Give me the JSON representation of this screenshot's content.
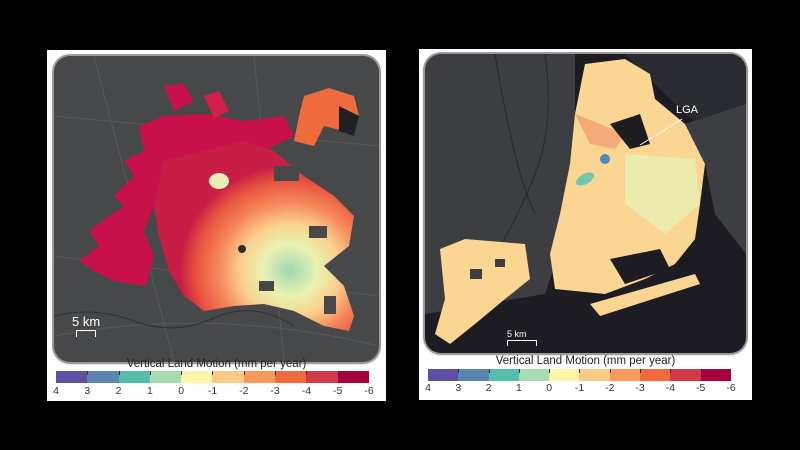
{
  "panels": [
    {
      "id": "houston",
      "scale_bar": "5 km",
      "legend": {
        "title": "Vertical Land Motion (mm per year)",
        "ticks": [
          "4",
          "3",
          "2",
          "1",
          "0",
          "-1",
          "-2",
          "-3",
          "-4",
          "-5",
          "-6"
        ]
      }
    },
    {
      "id": "new-york",
      "scale_bar": "5 km",
      "annotation": "LGA",
      "legend": {
        "title": "Vertical Land Motion (mm per year)",
        "ticks": [
          "4",
          "3",
          "2",
          "1",
          "0",
          "-1",
          "-2",
          "-3",
          "-4",
          "-5",
          "-6"
        ]
      }
    }
  ],
  "colorscale": {
    "colors": [
      "#5e4fa2",
      "#5b84b1",
      "#57bca9",
      "#a7dcb0",
      "#fdf7a9",
      "#fdc987",
      "#f99a5c",
      "#f06a3e",
      "#d33a49",
      "#a6003f"
    ],
    "min": 4,
    "max": -6,
    "unit": "mm per year"
  }
}
